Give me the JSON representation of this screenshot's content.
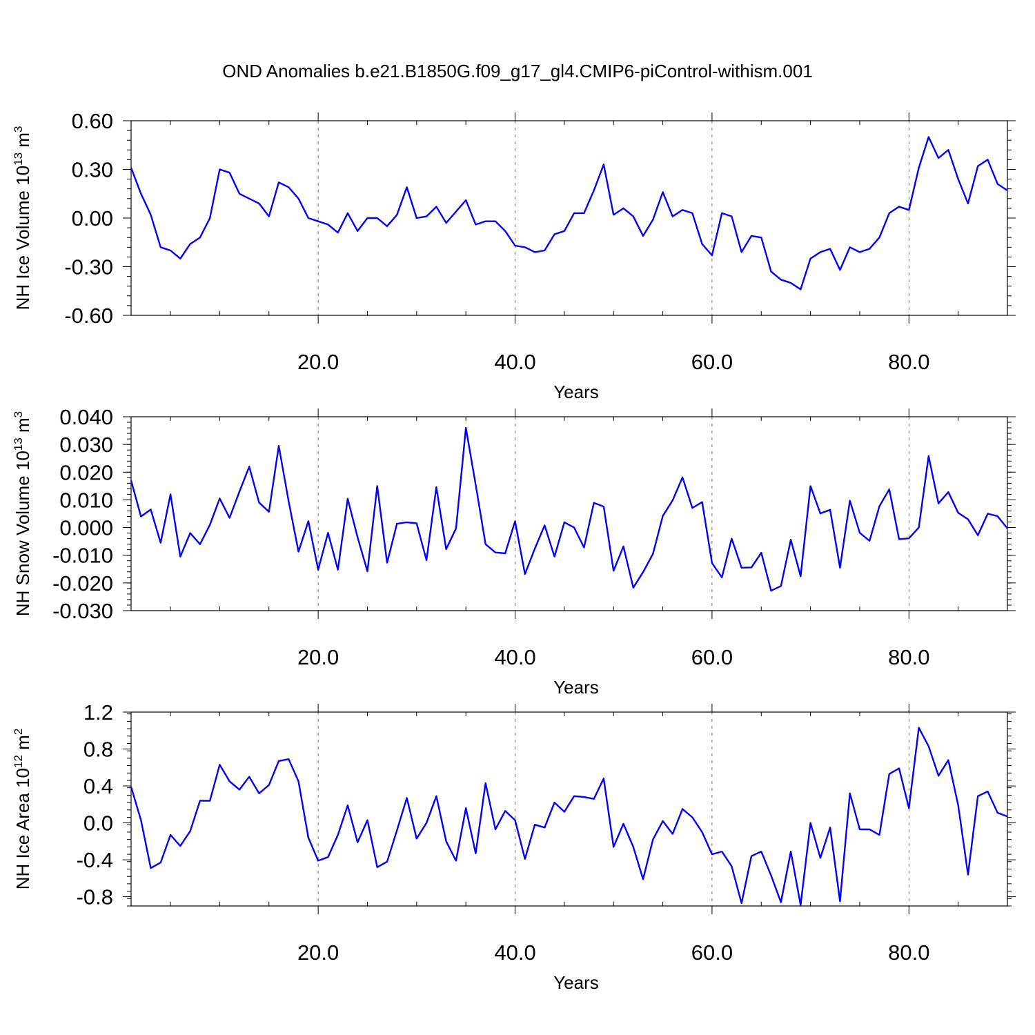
{
  "title": "OND Anomalies b.e21.B1850G.f09_g17_gl4.CMIP6-piControl-withism.001",
  "colors": {
    "series": "#0000ff",
    "axes": "#000000",
    "background": "#ffffff"
  },
  "chart_data": [
    {
      "type": "line",
      "xlabel": "Years",
      "ylabel_main": "NH Ice Volume 10",
      "ylabel_exp": "13",
      "ylabel_unit": " m",
      "ylabel_unit_exp": "3",
      "xlim": [
        1,
        90
      ],
      "ylim": [
        -0.6,
        0.6
      ],
      "xticks": [
        20,
        40,
        60,
        80
      ],
      "xtick_labels": [
        "20.0",
        "40.0",
        "60.0",
        "80.0"
      ],
      "yticks": [
        -0.6,
        -0.3,
        0.0,
        0.3,
        0.6
      ],
      "ytick_labels": [
        "-0.60",
        "-0.30",
        "0.00",
        "0.30",
        "0.60"
      ],
      "grid": "vertical dashed at major x ticks",
      "x_start": 1,
      "values": [
        0.31,
        0.15,
        0.02,
        -0.18,
        -0.2,
        -0.25,
        -0.16,
        -0.12,
        0.0,
        0.3,
        0.28,
        0.15,
        0.12,
        0.09,
        0.01,
        0.22,
        0.19,
        0.12,
        0.0,
        -0.02,
        -0.04,
        -0.09,
        0.03,
        -0.08,
        0.0,
        0.0,
        -0.05,
        0.02,
        0.19,
        0.0,
        0.01,
        0.07,
        -0.03,
        0.04,
        0.11,
        -0.04,
        -0.02,
        -0.02,
        -0.08,
        -0.17,
        -0.18,
        -0.21,
        -0.2,
        -0.1,
        -0.08,
        0.03,
        0.03,
        0.17,
        0.33,
        0.02,
        0.06,
        0.01,
        -0.11,
        -0.01,
        0.16,
        0.01,
        0.05,
        0.03,
        -0.16,
        -0.23,
        0.03,
        0.01,
        -0.21,
        -0.11,
        -0.12,
        -0.33,
        -0.38,
        -0.4,
        -0.44,
        -0.25,
        -0.21,
        -0.19,
        -0.32,
        -0.18,
        -0.21,
        -0.19,
        -0.12,
        0.03,
        0.07,
        0.05,
        0.31,
        0.5,
        0.37,
        0.42,
        0.24,
        0.09,
        0.32,
        0.36,
        0.21,
        0.17
      ]
    },
    {
      "type": "line",
      "xlabel": "Years",
      "ylabel_main": "NH Snow Volume 10",
      "ylabel_exp": "13",
      "ylabel_unit": " m",
      "ylabel_unit_exp": "3",
      "xlim": [
        1,
        90
      ],
      "ylim": [
        -0.03,
        0.04
      ],
      "xticks": [
        20,
        40,
        60,
        80
      ],
      "xtick_labels": [
        "20.0",
        "40.0",
        "60.0",
        "80.0"
      ],
      "yticks": [
        -0.03,
        -0.02,
        -0.01,
        0.0,
        0.01,
        0.02,
        0.03,
        0.04
      ],
      "ytick_labels": [
        "-0.030",
        "-0.020",
        "-0.010",
        "0.000",
        "0.010",
        "0.020",
        "0.030",
        "0.040"
      ],
      "grid": "vertical dashed at major x ticks",
      "x_start": 1,
      "values": [
        0.017,
        0.004,
        0.0065,
        -0.0055,
        0.012,
        -0.0105,
        -0.002,
        -0.006,
        0.001,
        0.0105,
        0.0035,
        0.013,
        0.022,
        0.009,
        0.0057,
        0.0295,
        0.0095,
        -0.0087,
        0.0023,
        -0.0152,
        -0.0019,
        -0.0152,
        0.0104,
        -0.0035,
        -0.0158,
        0.015,
        -0.0127,
        0.0014,
        0.0019,
        0.0015,
        -0.0118,
        0.0146,
        -0.0078,
        -0.0003,
        0.036,
        0.0155,
        -0.006,
        -0.009,
        -0.0093,
        0.0023,
        -0.0168,
        -0.0076,
        0.0008,
        -0.0105,
        0.0019,
        0.0,
        -0.0072,
        0.0089,
        0.0076,
        -0.0156,
        -0.0068,
        -0.0217,
        -0.0161,
        -0.0095,
        0.0042,
        0.0098,
        0.0181,
        0.0071,
        0.0092,
        -0.0128,
        -0.018,
        -0.004,
        -0.0145,
        -0.0144,
        -0.0091,
        -0.0228,
        -0.0211,
        -0.0044,
        -0.0176,
        0.015,
        0.0051,
        0.0064,
        -0.0145,
        0.0097,
        -0.0019,
        -0.0048,
        0.0077,
        0.0138,
        -0.0042,
        -0.0039,
        0.0,
        0.0258,
        0.0087,
        0.0128,
        0.0053,
        0.003,
        -0.0028,
        0.005,
        0.0041,
        -0.0003
      ]
    },
    {
      "type": "line",
      "xlabel": "Years",
      "ylabel_main": "NH Ice Area 10",
      "ylabel_exp": "12",
      "ylabel_unit": " m",
      "ylabel_unit_exp": "2",
      "xlim": [
        1,
        90
      ],
      "ylim": [
        -0.9,
        1.2
      ],
      "xticks": [
        20,
        40,
        60,
        80
      ],
      "xtick_labels": [
        "20.0",
        "40.0",
        "60.0",
        "80.0"
      ],
      "yticks": [
        -0.8,
        -0.4,
        0.0,
        0.4,
        0.8,
        1.2
      ],
      "ytick_labels": [
        "-0.8",
        "-0.4",
        "0.0",
        "0.4",
        "0.8",
        "1.2"
      ],
      "grid": "vertical dashed at major x ticks",
      "x_start": 1,
      "values": [
        0.39,
        0.03,
        -0.49,
        -0.43,
        -0.13,
        -0.25,
        -0.09,
        0.24,
        0.24,
        0.63,
        0.45,
        0.36,
        0.5,
        0.32,
        0.41,
        0.67,
        0.69,
        0.45,
        -0.16,
        -0.41,
        -0.37,
        -0.13,
        0.19,
        -0.21,
        0.03,
        -0.48,
        -0.42,
        -0.08,
        0.27,
        -0.17,
        0.0,
        0.29,
        -0.2,
        -0.41,
        0.16,
        -0.33,
        0.43,
        -0.07,
        0.13,
        0.03,
        -0.39,
        -0.02,
        -0.05,
        0.22,
        0.12,
        0.29,
        0.28,
        0.26,
        0.48,
        -0.26,
        -0.01,
        -0.26,
        -0.61,
        -0.18,
        0.02,
        -0.12,
        0.15,
        0.06,
        -0.1,
        -0.34,
        -0.31,
        -0.47,
        -0.87,
        -0.36,
        -0.31,
        -0.57,
        -0.86,
        -0.31,
        -0.89,
        0.0,
        -0.38,
        -0.05,
        -0.85,
        0.32,
        -0.07,
        -0.07,
        -0.13,
        0.53,
        0.59,
        0.16,
        1.03,
        0.83,
        0.51,
        0.68,
        0.19,
        -0.56,
        0.29,
        0.34,
        0.11,
        0.07
      ]
    }
  ]
}
